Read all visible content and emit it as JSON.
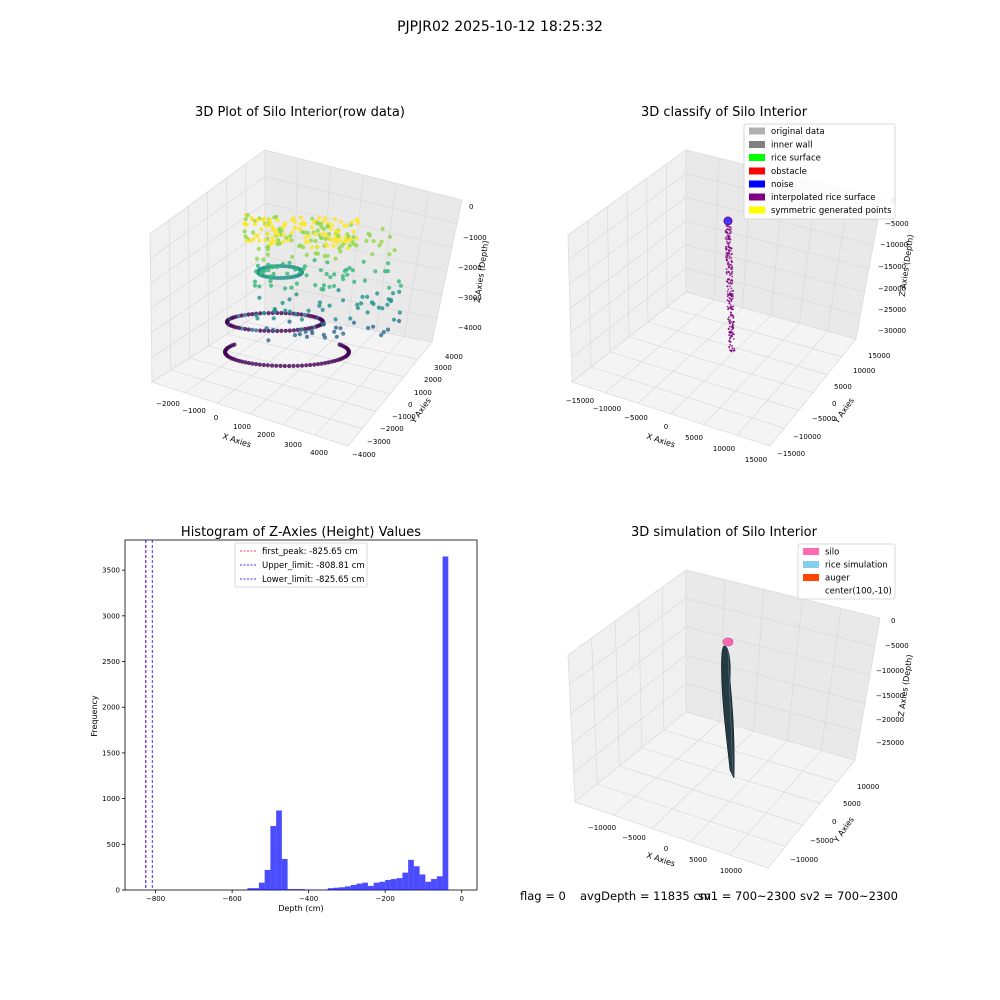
{
  "figure": {
    "suptitle": "PJPJR02 2025-10-12 18:25:32"
  },
  "panel_raw": {
    "title": "3D Plot of Silo Interior(row data)",
    "xlabel": "X Axies",
    "ylabel": "Y Axies",
    "zlabel": "Z Axies (Depth)",
    "x_ticks": [
      "−2000",
      "−1000",
      "0",
      "1000",
      "2000",
      "3000",
      "4000"
    ],
    "y_ticks": [
      "−4000",
      "−3000",
      "−2000",
      "−1000",
      "0",
      "1000",
      "2000",
      "3000",
      "4000"
    ],
    "z_ticks": [
      "0",
      "−1000",
      "−2000",
      "−3000",
      "−4000"
    ],
    "colormap": [
      "#440154",
      "#31688e",
      "#21918c",
      "#35b779",
      "#90d743",
      "#fde725"
    ]
  },
  "panel_classify": {
    "title": "3D classify of Silo Interior",
    "xlabel": "X Axies",
    "ylabel": "Y Axies",
    "zlabel": "Z Axies (Depth)",
    "x_ticks": [
      "−15000",
      "−10000",
      "−5000",
      "0",
      "5000",
      "10000",
      "15000"
    ],
    "y_ticks": [
      "−15000",
      "−10000",
      "−5000",
      "0",
      "5000",
      "10000",
      "15000"
    ],
    "z_ticks": [
      "0",
      "−5000",
      "−10000",
      "−15000",
      "−20000",
      "−25000",
      "−30000"
    ],
    "legend": [
      {
        "label": "original data",
        "color": "#b0b0b0"
      },
      {
        "label": "inner wall",
        "color": "#808080"
      },
      {
        "label": "rice surface",
        "color": "#00ff00"
      },
      {
        "label": "obstacle",
        "color": "#ff0000"
      },
      {
        "label": "noise",
        "color": "#0000ff"
      },
      {
        "label": "interpolated rice surface",
        "color": "#800080"
      },
      {
        "label": "symmetric generated points",
        "color": "#ffff00"
      }
    ]
  },
  "panel_sim": {
    "title": "3D simulation of Silo Interior",
    "xlabel": "X Axies",
    "ylabel": "Y Axies",
    "zlabel": "Z Axies (Depth)",
    "x_ticks": [
      "−10000",
      "−5000",
      "0",
      "5000",
      "10000"
    ],
    "y_ticks": [
      "−10000",
      "−5000",
      "0",
      "5000",
      "10000"
    ],
    "z_ticks": [
      "0",
      "−5000",
      "−10000",
      "−15000",
      "−20000",
      "−25000"
    ],
    "legend": [
      {
        "label": "silo",
        "color": "#ff69b4"
      },
      {
        "label": "rice simulation",
        "color": "#87ceeb"
      },
      {
        "label": "auger",
        "color": "#ff4500"
      },
      {
        "label": "center(100,-10)",
        "color": ""
      }
    ]
  },
  "footer": {
    "flag": "flag = 0",
    "avg_depth": "avgDepth = 11835 cm",
    "sv1": "sv1 = 700~2300",
    "sv2": "sv2 = 700~2300"
  },
  "chart_data": {
    "type": "bar",
    "title": "Histogram of Z-Axies (Height) Values",
    "xlabel": "Depth (cm)",
    "ylabel": "Frequency",
    "xlim": [
      -880,
      40
    ],
    "ylim": [
      0,
      3830
    ],
    "x_ticks": [
      -800,
      -600,
      -400,
      -200,
      0
    ],
    "x_tick_labels": [
      "−800",
      "−600",
      "−400",
      "−200",
      "0"
    ],
    "y_ticks": [
      0,
      500,
      1000,
      1500,
      2000,
      2500,
      3000,
      3500
    ],
    "bar_color": "#0000ff",
    "bins": [
      {
        "x0": -560,
        "x1": -545,
        "count": 20
      },
      {
        "x0": -545,
        "x1": -530,
        "count": 20
      },
      {
        "x0": -530,
        "x1": -515,
        "count": 80
      },
      {
        "x0": -515,
        "x1": -500,
        "count": 220
      },
      {
        "x0": -500,
        "x1": -485,
        "count": 700
      },
      {
        "x0": -485,
        "x1": -470,
        "count": 870
      },
      {
        "x0": -470,
        "x1": -455,
        "count": 340
      },
      {
        "x0": -455,
        "x1": -440,
        "count": 10
      },
      {
        "x0": -440,
        "x1": -425,
        "count": 10
      },
      {
        "x0": -425,
        "x1": -410,
        "count": 10
      },
      {
        "x0": -410,
        "x1": -395,
        "count": 5
      },
      {
        "x0": -395,
        "x1": -380,
        "count": 5
      },
      {
        "x0": -380,
        "x1": -365,
        "count": 5
      },
      {
        "x0": -365,
        "x1": -350,
        "count": 5
      },
      {
        "x0": -350,
        "x1": -335,
        "count": 20
      },
      {
        "x0": -335,
        "x1": -320,
        "count": 25
      },
      {
        "x0": -320,
        "x1": -305,
        "count": 30
      },
      {
        "x0": -305,
        "x1": -290,
        "count": 40
      },
      {
        "x0": -290,
        "x1": -275,
        "count": 55
      },
      {
        "x0": -275,
        "x1": -260,
        "count": 70
      },
      {
        "x0": -260,
        "x1": -245,
        "count": 80
      },
      {
        "x0": -245,
        "x1": -230,
        "count": 45
      },
      {
        "x0": -230,
        "x1": -215,
        "count": 80
      },
      {
        "x0": -215,
        "x1": -200,
        "count": 90
      },
      {
        "x0": -200,
        "x1": -185,
        "count": 110
      },
      {
        "x0": -185,
        "x1": -170,
        "count": 120
      },
      {
        "x0": -170,
        "x1": -155,
        "count": 130
      },
      {
        "x0": -155,
        "x1": -140,
        "count": 190
      },
      {
        "x0": -140,
        "x1": -125,
        "count": 330
      },
      {
        "x0": -125,
        "x1": -110,
        "count": 260
      },
      {
        "x0": -110,
        "x1": -95,
        "count": 170
      },
      {
        "x0": -95,
        "x1": -80,
        "count": 90
      },
      {
        "x0": -80,
        "x1": -65,
        "count": 120
      },
      {
        "x0": -65,
        "x1": -50,
        "count": 150
      },
      {
        "x0": -50,
        "x1": -35,
        "count": 3650
      }
    ],
    "lines": [
      {
        "label": "first_peak: -825.65 cm",
        "x": -825.65,
        "color": "#ff0000"
      },
      {
        "label": "Upper_limit: -808.81 cm",
        "x": -808.81,
        "color": "#0000ff"
      },
      {
        "label": "Lower_limit: -825.65 cm",
        "x": -825.65,
        "color": "#0000ff"
      }
    ]
  }
}
